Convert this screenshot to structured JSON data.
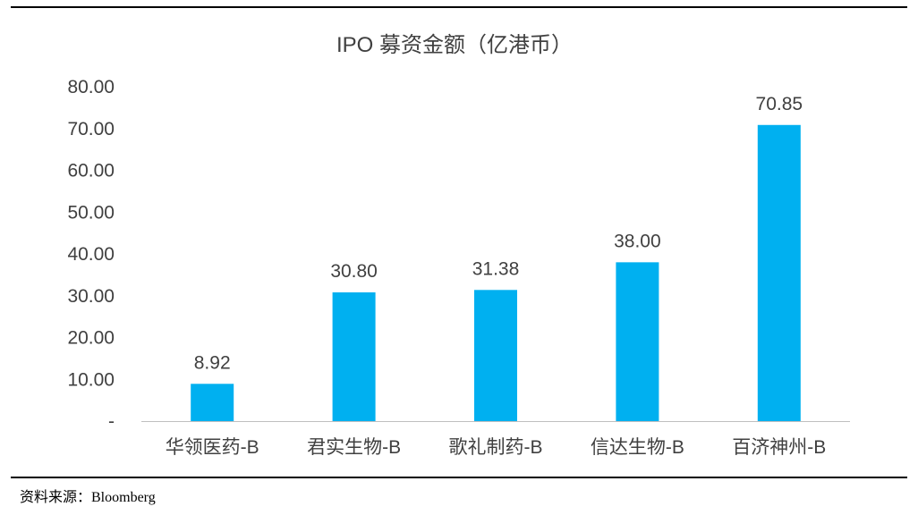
{
  "chart_data": {
    "type": "bar",
    "title": "IPO 募资金额（亿港币）",
    "categories": [
      "华领医药-B",
      "君实生物-B",
      "歌礼制药-B",
      "信达生物-B",
      "百济神州-B"
    ],
    "values": [
      8.92,
      30.8,
      31.38,
      38.0,
      70.85
    ],
    "data_labels": [
      "8.92",
      "30.80",
      "31.38",
      "38.00",
      "70.85"
    ],
    "ylim": [
      0,
      80
    ],
    "yticks": [
      0,
      10,
      20,
      30,
      40,
      50,
      60,
      70,
      80
    ],
    "ytick_labels": [
      "-",
      "10.00",
      "20.00",
      "30.00",
      "40.00",
      "50.00",
      "60.00",
      "70.00",
      "80.00"
    ],
    "xlabel": "",
    "ylabel": "",
    "grid": false,
    "bar_color": "#00B0F0",
    "text_color": "#404040",
    "axis_color": "#BFBFBF"
  },
  "source": "资料来源：Bloomberg"
}
